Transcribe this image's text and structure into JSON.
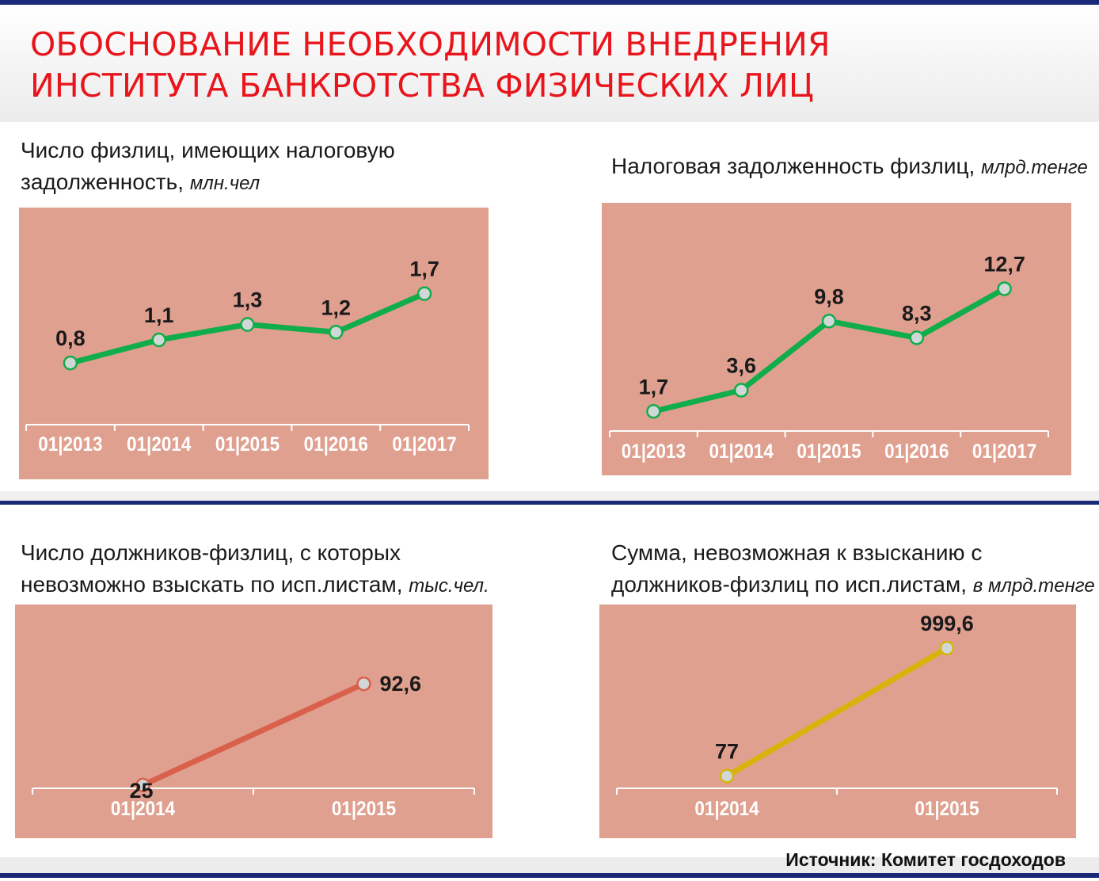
{
  "page": {
    "title_line1": "ОБОСНОВАНИЕ НЕОБХОДИМОСТИ ВНЕДРЕНИЯ",
    "title_line2": "ИНСТИТУТА БАНКРОТСТВА ФИЗИЧЕСКИХ ЛИЦ",
    "source_label": "Источник:",
    "source_value": " Комитет госдоходов",
    "accent_color": "#e8161c",
    "rule_color": "#1b2a78"
  },
  "panels": [
    {
      "title_lines": [
        "Число физлиц, имеющих налоговую",
        "задолженность,"
      ],
      "unit": "млн.чел",
      "line_color": "#11ad4b"
    },
    {
      "title_lines": [
        "Налоговая задолженность физлиц,"
      ],
      "unit": "млрд.тенге",
      "line_color": "#11ad4b"
    },
    {
      "title_lines": [
        "Число должников-физлиц, с которых",
        "невозможно взыскать по исп.листам,"
      ],
      "unit": "тыс.чел.",
      "line_color": "#d9604a"
    },
    {
      "title_lines": [
        "Сумма, невозможная к взысканию с",
        "должников-физлиц по исп.листам,"
      ],
      "unit": "в млрд.тенге",
      "line_color": "#d6b40c"
    }
  ],
  "chart_data": [
    {
      "type": "line",
      "title": "Число физлиц, имеющих налоговую задолженность, млн.чел",
      "categories": [
        "01|2013",
        "01|2014",
        "01|2015",
        "01|2016",
        "01|2017"
      ],
      "values": [
        0.8,
        1.1,
        1.3,
        1.2,
        1.7
      ],
      "value_labels": [
        "0,8",
        "1,1",
        "1,3",
        "1,2",
        "1,7"
      ],
      "ylim": [
        0.0,
        2.2
      ],
      "grid": false,
      "legend": "none"
    },
    {
      "type": "line",
      "title": "Налоговая задолженность физлиц, млрд.тенге",
      "categories": [
        "01|2013",
        "01|2014",
        "01|2015",
        "01|2016",
        "01|2017"
      ],
      "values": [
        1.7,
        3.6,
        9.8,
        8.3,
        12.7
      ],
      "value_labels": [
        "1,7",
        "3,6",
        "9,8",
        "8,3",
        "12,7"
      ],
      "ylim": [
        -0.2,
        16.5
      ],
      "grid": false,
      "legend": "none"
    },
    {
      "type": "line",
      "title": "Число должников-физлиц, с которых невозможно взыскать по исп.листам, тыс.чел.",
      "categories": [
        "01|2014",
        "01|2015"
      ],
      "values": [
        25,
        92.6
      ],
      "value_labels": [
        "25",
        "92,6"
      ],
      "ylim": [
        8,
        135
      ],
      "grid": false,
      "legend": "none"
    },
    {
      "type": "line",
      "title": "Сумма, невозможная к взысканию с должников-физлиц по исп.листам, в млрд.тенге",
      "categories": [
        "01|2014",
        "01|2015"
      ],
      "values": [
        77,
        999.6
      ],
      "value_labels": [
        "77",
        "999,6"
      ],
      "ylim": [
        0,
        1200
      ],
      "grid": false,
      "legend": "none"
    }
  ]
}
